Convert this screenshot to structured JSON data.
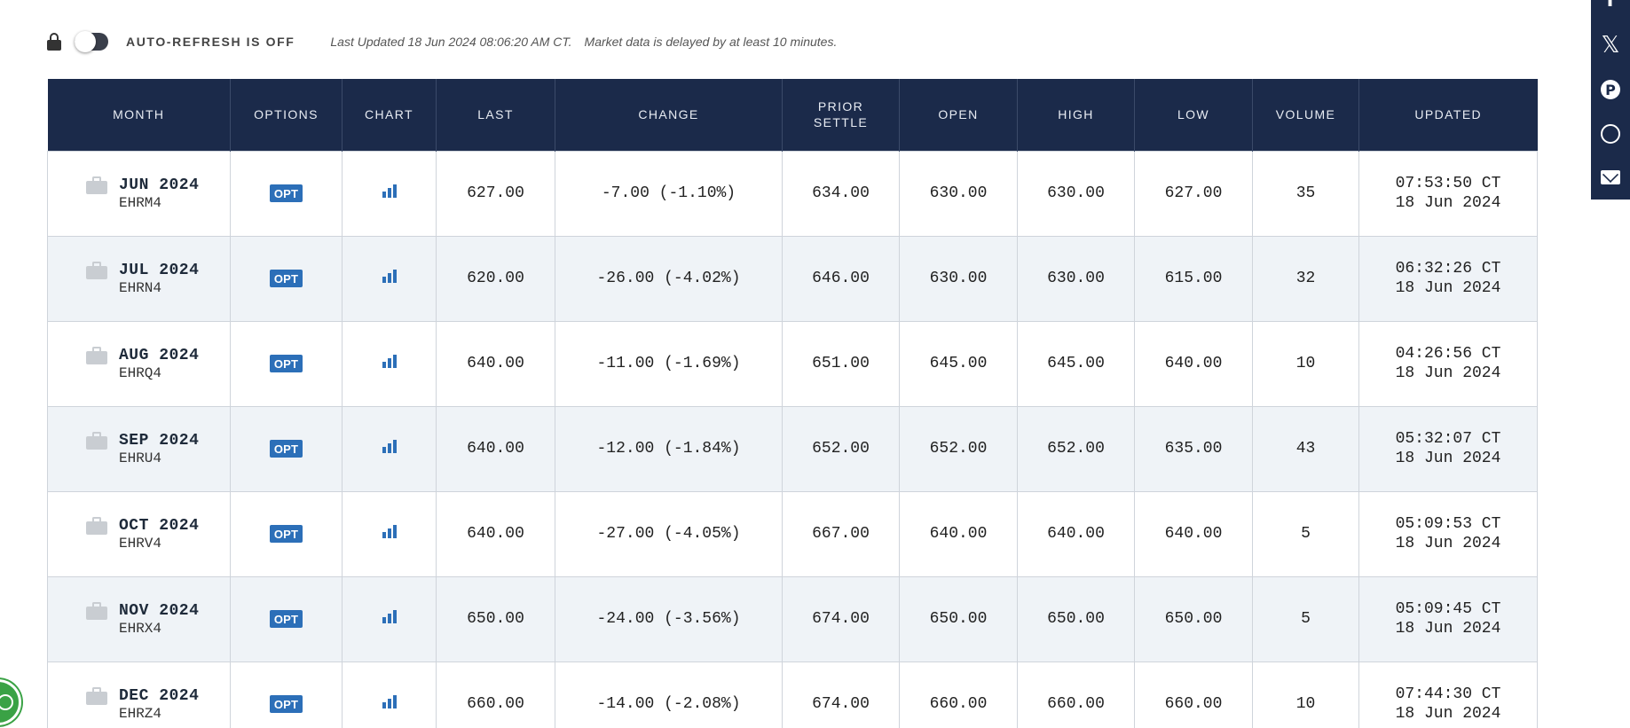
{
  "status": {
    "auto_refresh_label": "AUTO-REFRESH IS OFF",
    "last_updated": "Last Updated 18 Jun 2024 08:06:20 AM CT.",
    "delay_note": "Market data is delayed by at least 10 minutes.",
    "icons": {
      "lock": "lock-icon",
      "toggle": "toggle-off"
    }
  },
  "table": {
    "headers": {
      "month": "MONTH",
      "options": "OPTIONS",
      "chart": "CHART",
      "last": "LAST",
      "change": "CHANGE",
      "prior_settle_line1": "PRIOR",
      "prior_settle_line2": "SETTLE",
      "open": "OPEN",
      "high": "HIGH",
      "low": "LOW",
      "volume": "VOLUME",
      "updated": "UPDATED"
    },
    "opt_label": "OPT",
    "rows": [
      {
        "month": "JUN 2024",
        "code": "EHRM4",
        "last": "627.00",
        "change": "-7.00 (-1.10%)",
        "prior_settle": "634.00",
        "open": "630.00",
        "high": "630.00",
        "low": "627.00",
        "volume": "35",
        "updated_time": "07:53:50 CT",
        "updated_date": "18 Jun 2024"
      },
      {
        "month": "JUL 2024",
        "code": "EHRN4",
        "last": "620.00",
        "change": "-26.00 (-4.02%)",
        "prior_settle": "646.00",
        "open": "630.00",
        "high": "630.00",
        "low": "615.00",
        "volume": "32",
        "updated_time": "06:32:26 CT",
        "updated_date": "18 Jun 2024"
      },
      {
        "month": "AUG 2024",
        "code": "EHRQ4",
        "last": "640.00",
        "change": "-11.00 (-1.69%)",
        "prior_settle": "651.00",
        "open": "645.00",
        "high": "645.00",
        "low": "640.00",
        "volume": "10",
        "updated_time": "04:26:56 CT",
        "updated_date": "18 Jun 2024"
      },
      {
        "month": "SEP 2024",
        "code": "EHRU4",
        "last": "640.00",
        "change": "-12.00 (-1.84%)",
        "prior_settle": "652.00",
        "open": "652.00",
        "high": "652.00",
        "low": "635.00",
        "volume": "43",
        "updated_time": "05:32:07 CT",
        "updated_date": "18 Jun 2024"
      },
      {
        "month": "OCT 2024",
        "code": "EHRV4",
        "last": "640.00",
        "change": "-27.00 (-4.05%)",
        "prior_settle": "667.00",
        "open": "640.00",
        "high": "640.00",
        "low": "640.00",
        "volume": "5",
        "updated_time": "05:09:53 CT",
        "updated_date": "18 Jun 2024"
      },
      {
        "month": "NOV 2024",
        "code": "EHRX4",
        "last": "650.00",
        "change": "-24.00 (-3.56%)",
        "prior_settle": "674.00",
        "open": "650.00",
        "high": "650.00",
        "low": "650.00",
        "volume": "5",
        "updated_time": "05:09:45 CT",
        "updated_date": "18 Jun 2024"
      },
      {
        "month": "DEC 2024",
        "code": "EHRZ4",
        "last": "660.00",
        "change": "-14.00 (-2.08%)",
        "prior_settle": "674.00",
        "open": "660.00",
        "high": "660.00",
        "low": "660.00",
        "volume": "10",
        "updated_time": "07:44:30 CT",
        "updated_date": "18 Jun 2024"
      }
    ]
  },
  "share_bar": {
    "items": [
      "facebook-icon",
      "x-icon",
      "pinterest-icon",
      "whatsapp-icon",
      "email-icon"
    ],
    "facebook_glyph": "f",
    "x_glyph": "𝕏",
    "pinterest_glyph": "P"
  },
  "colors": {
    "header_bg": "#1b2a4a",
    "negative_change": "#e0262d",
    "opt_badge": "#2c6fb8",
    "alt_row": "#eff3f7"
  }
}
